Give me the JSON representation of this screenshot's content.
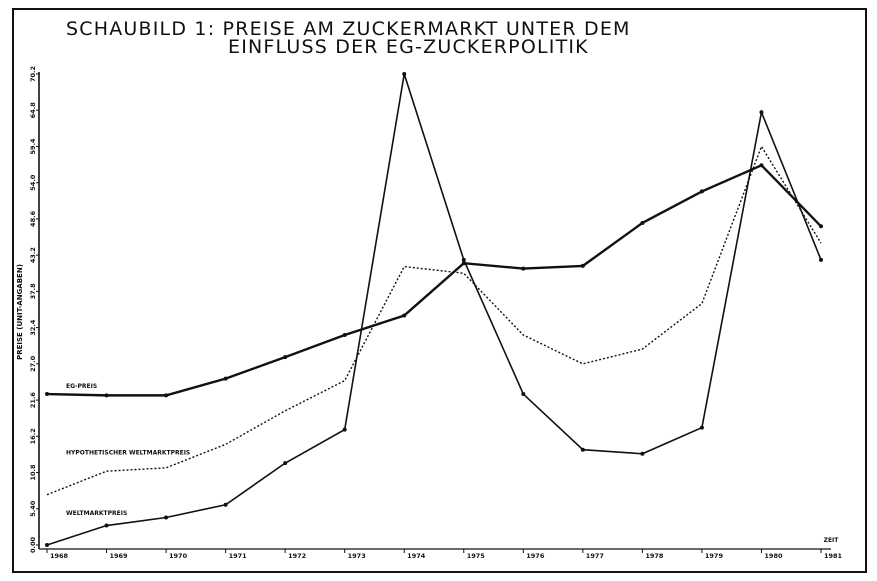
{
  "chart_data": {
    "type": "line",
    "title_line1": "SCHAUBILD 1: PREISE AM ZUCKERMARKT UNTER DEM",
    "title_line2": "EINFLUSS DER EG-ZUCKERPOLITIK",
    "ylabel": "PREISE (UNIT-ANGABEN)",
    "x_unit": "ZEIT",
    "categories": [
      "1968",
      "1969",
      "1970",
      "1971",
      "1972",
      "1973",
      "1974",
      "1975",
      "1976",
      "1977",
      "1978",
      "1979",
      "1980",
      "1981"
    ],
    "yticks": [
      "0.00",
      "5.40",
      "10.8",
      "16.2",
      "21.6",
      "27.0",
      "32.4",
      "37.8",
      "43.2",
      "48.6",
      "54.0",
      "59.4",
      "64.8",
      "70.2"
    ],
    "ylim": [
      0,
      70.2
    ],
    "series": [
      {
        "name": "EG-PREIS",
        "values": [
          22.5,
          22.3,
          22.3,
          24.8,
          28.0,
          31.3,
          34.2,
          42.0,
          41.2,
          41.6,
          48.0,
          52.7,
          56.6,
          47.5
        ],
        "line_style": "solid-bold",
        "label_cat": 0.3
      },
      {
        "name": "HYPOTHETISCHER WELTMARKTPREIS",
        "values": [
          7.5,
          11.0,
          11.5,
          15.0,
          20.0,
          24.5,
          41.5,
          40.5,
          31.3,
          27.0,
          29.2,
          36.0,
          59.4,
          45.0
        ],
        "line_style": "dotted",
        "label_cat": 0.3
      },
      {
        "name": "WELTMARKTPREIS",
        "values": [
          0.0,
          2.9,
          4.1,
          6.0,
          12.2,
          17.2,
          70.2,
          42.5,
          22.5,
          14.2,
          13.6,
          17.5,
          64.5,
          42.5
        ],
        "line_style": "solid",
        "label_cat": 0.3
      }
    ],
    "grid": false,
    "legend": "inline-left"
  }
}
